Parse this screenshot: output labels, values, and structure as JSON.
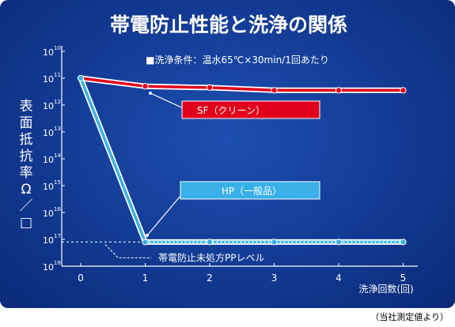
{
  "chart_data": {
    "type": "line",
    "title": "帯電防止性能と洗浄の関係",
    "subtitle": "■洗浄条件：温水65℃×30min/1回あたり",
    "ylabel_chars": [
      "表",
      "面",
      "抵",
      "抗",
      "率",
      "Ω",
      "／",
      "□"
    ],
    "xlabel": "洗浄回数(回)",
    "x": [
      0,
      1,
      2,
      3,
      4,
      5
    ],
    "y_scale": "log",
    "ylim_exponents": [
      10,
      18
    ],
    "y_inverted": true,
    "y_tick_base": "10",
    "y_tick_exponents": [
      "10",
      "11",
      "12",
      "13",
      "14",
      "15",
      "16",
      "17",
      "18"
    ],
    "series": [
      {
        "name": "SF（クリーン）",
        "exponents": [
          11.0,
          11.3,
          11.35,
          11.45,
          11.45,
          11.45
        ],
        "color": "#e0001c"
      },
      {
        "name": "HP（一般品）",
        "exponents": [
          11.0,
          17.1,
          17.1,
          17.1,
          17.1,
          17.1
        ],
        "color": "#39b0e8"
      }
    ],
    "reference": {
      "label": "帯電防止未処方PPレベル",
      "exponent": 17.1
    },
    "grid": false
  },
  "source_note": "（当社測定値より）"
}
